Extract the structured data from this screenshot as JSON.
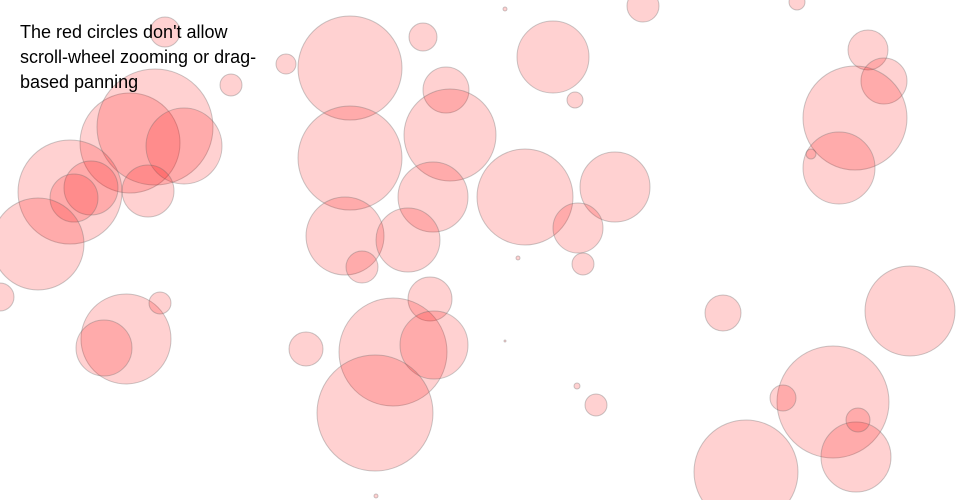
{
  "caption": "The red circles don't allow scroll-wheel zooming or drag-based panning",
  "colors": {
    "circle_fill": "#ff0000",
    "circle_stroke": "#666666",
    "background": "#ffffff"
  }
}
